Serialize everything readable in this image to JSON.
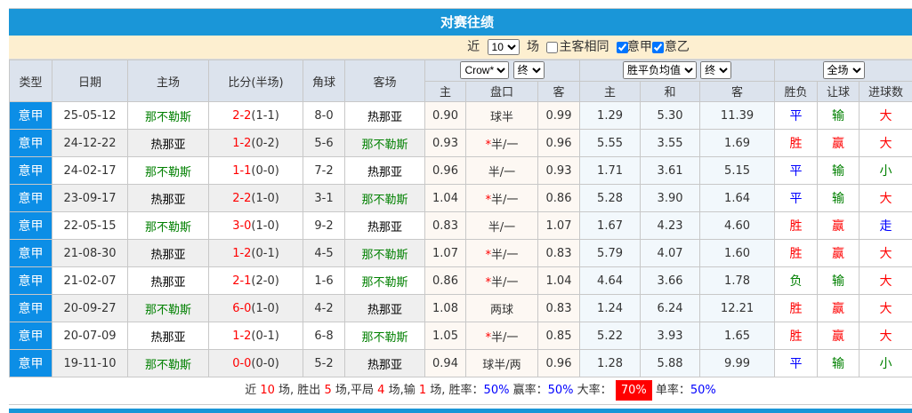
{
  "title": "对赛往绩",
  "filter": {
    "prefix": "近",
    "count": "10",
    "suffix": "场",
    "same_home_away": "主客相同",
    "same_home_away_checked": false,
    "league1": "意甲",
    "league1_checked": true,
    "league2": "意乙",
    "league2_checked": true
  },
  "headers": {
    "type": "类型",
    "date": "日期",
    "home": "主场",
    "score": "比分(半场)",
    "corner": "角球",
    "away": "客场",
    "ah_company": "Crow*",
    "ah_stage": "终",
    "eu_type": "胜平负均值",
    "eu_stage": "终",
    "result_scope": "全场",
    "ah_home": "主",
    "ah_line": "盘口",
    "ah_away": "客",
    "eu_home": "主",
    "eu_draw": "和",
    "eu_away": "客",
    "wl": "胜负",
    "hc": "让球",
    "ou": "进球数"
  },
  "colors": {
    "title_bar": "#1a96d8",
    "type_cell": "#0c8ee6",
    "filter_bg": "#fdefd0",
    "highlight": "#ff0000"
  },
  "rows": [
    {
      "type": "意甲",
      "date": "25-05-12",
      "home": "那不勒斯",
      "ft": "2-2",
      "ht": "(1-1)",
      "corner": "8-0",
      "away": "热那亚",
      "ah_h": "0.90",
      "ah_star": "",
      "ah_line": "球半",
      "ah_a": "0.99",
      "eu_h": "1.29",
      "eu_d": "5.30",
      "eu_a": "11.39",
      "wl": "平",
      "hc": "输",
      "ou": "大"
    },
    {
      "type": "意甲",
      "date": "24-12-22",
      "home": "热那亚",
      "ft": "1-2",
      "ht": "(0-2)",
      "corner": "5-6",
      "away": "那不勒斯",
      "ah_h": "0.93",
      "ah_star": "*",
      "ah_line": "半/一",
      "ah_a": "0.96",
      "eu_h": "5.55",
      "eu_d": "3.55",
      "eu_a": "1.69",
      "wl": "胜",
      "hc": "赢",
      "ou": "大"
    },
    {
      "type": "意甲",
      "date": "24-02-17",
      "home": "那不勒斯",
      "ft": "1-1",
      "ht": "(0-0)",
      "corner": "7-2",
      "away": "热那亚",
      "ah_h": "0.96",
      "ah_star": "",
      "ah_line": "半/一",
      "ah_a": "0.93",
      "eu_h": "1.71",
      "eu_d": "3.61",
      "eu_a": "5.15",
      "wl": "平",
      "hc": "输",
      "ou": "小"
    },
    {
      "type": "意甲",
      "date": "23-09-17",
      "home": "热那亚",
      "ft": "2-2",
      "ht": "(1-0)",
      "corner": "3-1",
      "away": "那不勒斯",
      "ah_h": "1.04",
      "ah_star": "*",
      "ah_line": "半/一",
      "ah_a": "0.86",
      "eu_h": "5.28",
      "eu_d": "3.90",
      "eu_a": "1.64",
      "wl": "平",
      "hc": "输",
      "ou": "大"
    },
    {
      "type": "意甲",
      "date": "22-05-15",
      "home": "那不勒斯",
      "ft": "3-0",
      "ht": "(1-0)",
      "corner": "9-2",
      "away": "热那亚",
      "ah_h": "0.83",
      "ah_star": "",
      "ah_line": "半/一",
      "ah_a": "1.07",
      "eu_h": "1.67",
      "eu_d": "4.23",
      "eu_a": "4.60",
      "wl": "胜",
      "hc": "赢",
      "ou": "走"
    },
    {
      "type": "意甲",
      "date": "21-08-30",
      "home": "热那亚",
      "ft": "1-2",
      "ht": "(0-1)",
      "corner": "4-5",
      "away": "那不勒斯",
      "ah_h": "1.07",
      "ah_star": "*",
      "ah_line": "半/一",
      "ah_a": "0.83",
      "eu_h": "5.79",
      "eu_d": "4.07",
      "eu_a": "1.60",
      "wl": "胜",
      "hc": "赢",
      "ou": "大"
    },
    {
      "type": "意甲",
      "date": "21-02-07",
      "home": "热那亚",
      "ft": "2-1",
      "ht": "(2-0)",
      "corner": "1-6",
      "away": "那不勒斯",
      "ah_h": "0.86",
      "ah_star": "*",
      "ah_line": "半/一",
      "ah_a": "1.04",
      "eu_h": "4.64",
      "eu_d": "3.66",
      "eu_a": "1.78",
      "wl": "负",
      "hc": "输",
      "ou": "大"
    },
    {
      "type": "意甲",
      "date": "20-09-27",
      "home": "那不勒斯",
      "ft": "6-0",
      "ht": "(1-0)",
      "corner": "4-2",
      "away": "热那亚",
      "ah_h": "1.08",
      "ah_star": "",
      "ah_line": "两球",
      "ah_a": "0.83",
      "eu_h": "1.24",
      "eu_d": "6.24",
      "eu_a": "12.21",
      "wl": "胜",
      "hc": "赢",
      "ou": "大"
    },
    {
      "type": "意甲",
      "date": "20-07-09",
      "home": "热那亚",
      "ft": "1-2",
      "ht": "(0-1)",
      "corner": "6-8",
      "away": "那不勒斯",
      "ah_h": "1.05",
      "ah_star": "*",
      "ah_line": "半/一",
      "ah_a": "0.85",
      "eu_h": "5.22",
      "eu_d": "3.93",
      "eu_a": "1.65",
      "wl": "胜",
      "hc": "赢",
      "ou": "大"
    },
    {
      "type": "意甲",
      "date": "19-11-10",
      "home": "那不勒斯",
      "ft": "0-0",
      "ht": "(0-0)",
      "corner": "5-2",
      "away": "热那亚",
      "ah_h": "0.94",
      "ah_star": "",
      "ah_line": "球半/两",
      "ah_a": "0.96",
      "eu_h": "1.28",
      "eu_d": "5.88",
      "eu_a": "9.99",
      "wl": "平",
      "hc": "输",
      "ou": "小"
    }
  ],
  "summary": {
    "t1": "近",
    "n": "10",
    "t2": "场, 胜出",
    "win": "5",
    "t3": "场,平局",
    "draw": "4",
    "t4": "场,输",
    "lose": "1",
    "t5": "场, 胜率：",
    "win_rate": "50%",
    "t6": "赢率：",
    "hc_rate": "50%",
    "t7": "大率：",
    "over_rate": "70%",
    "t8": "单率：",
    "odd_rate": "50%"
  }
}
